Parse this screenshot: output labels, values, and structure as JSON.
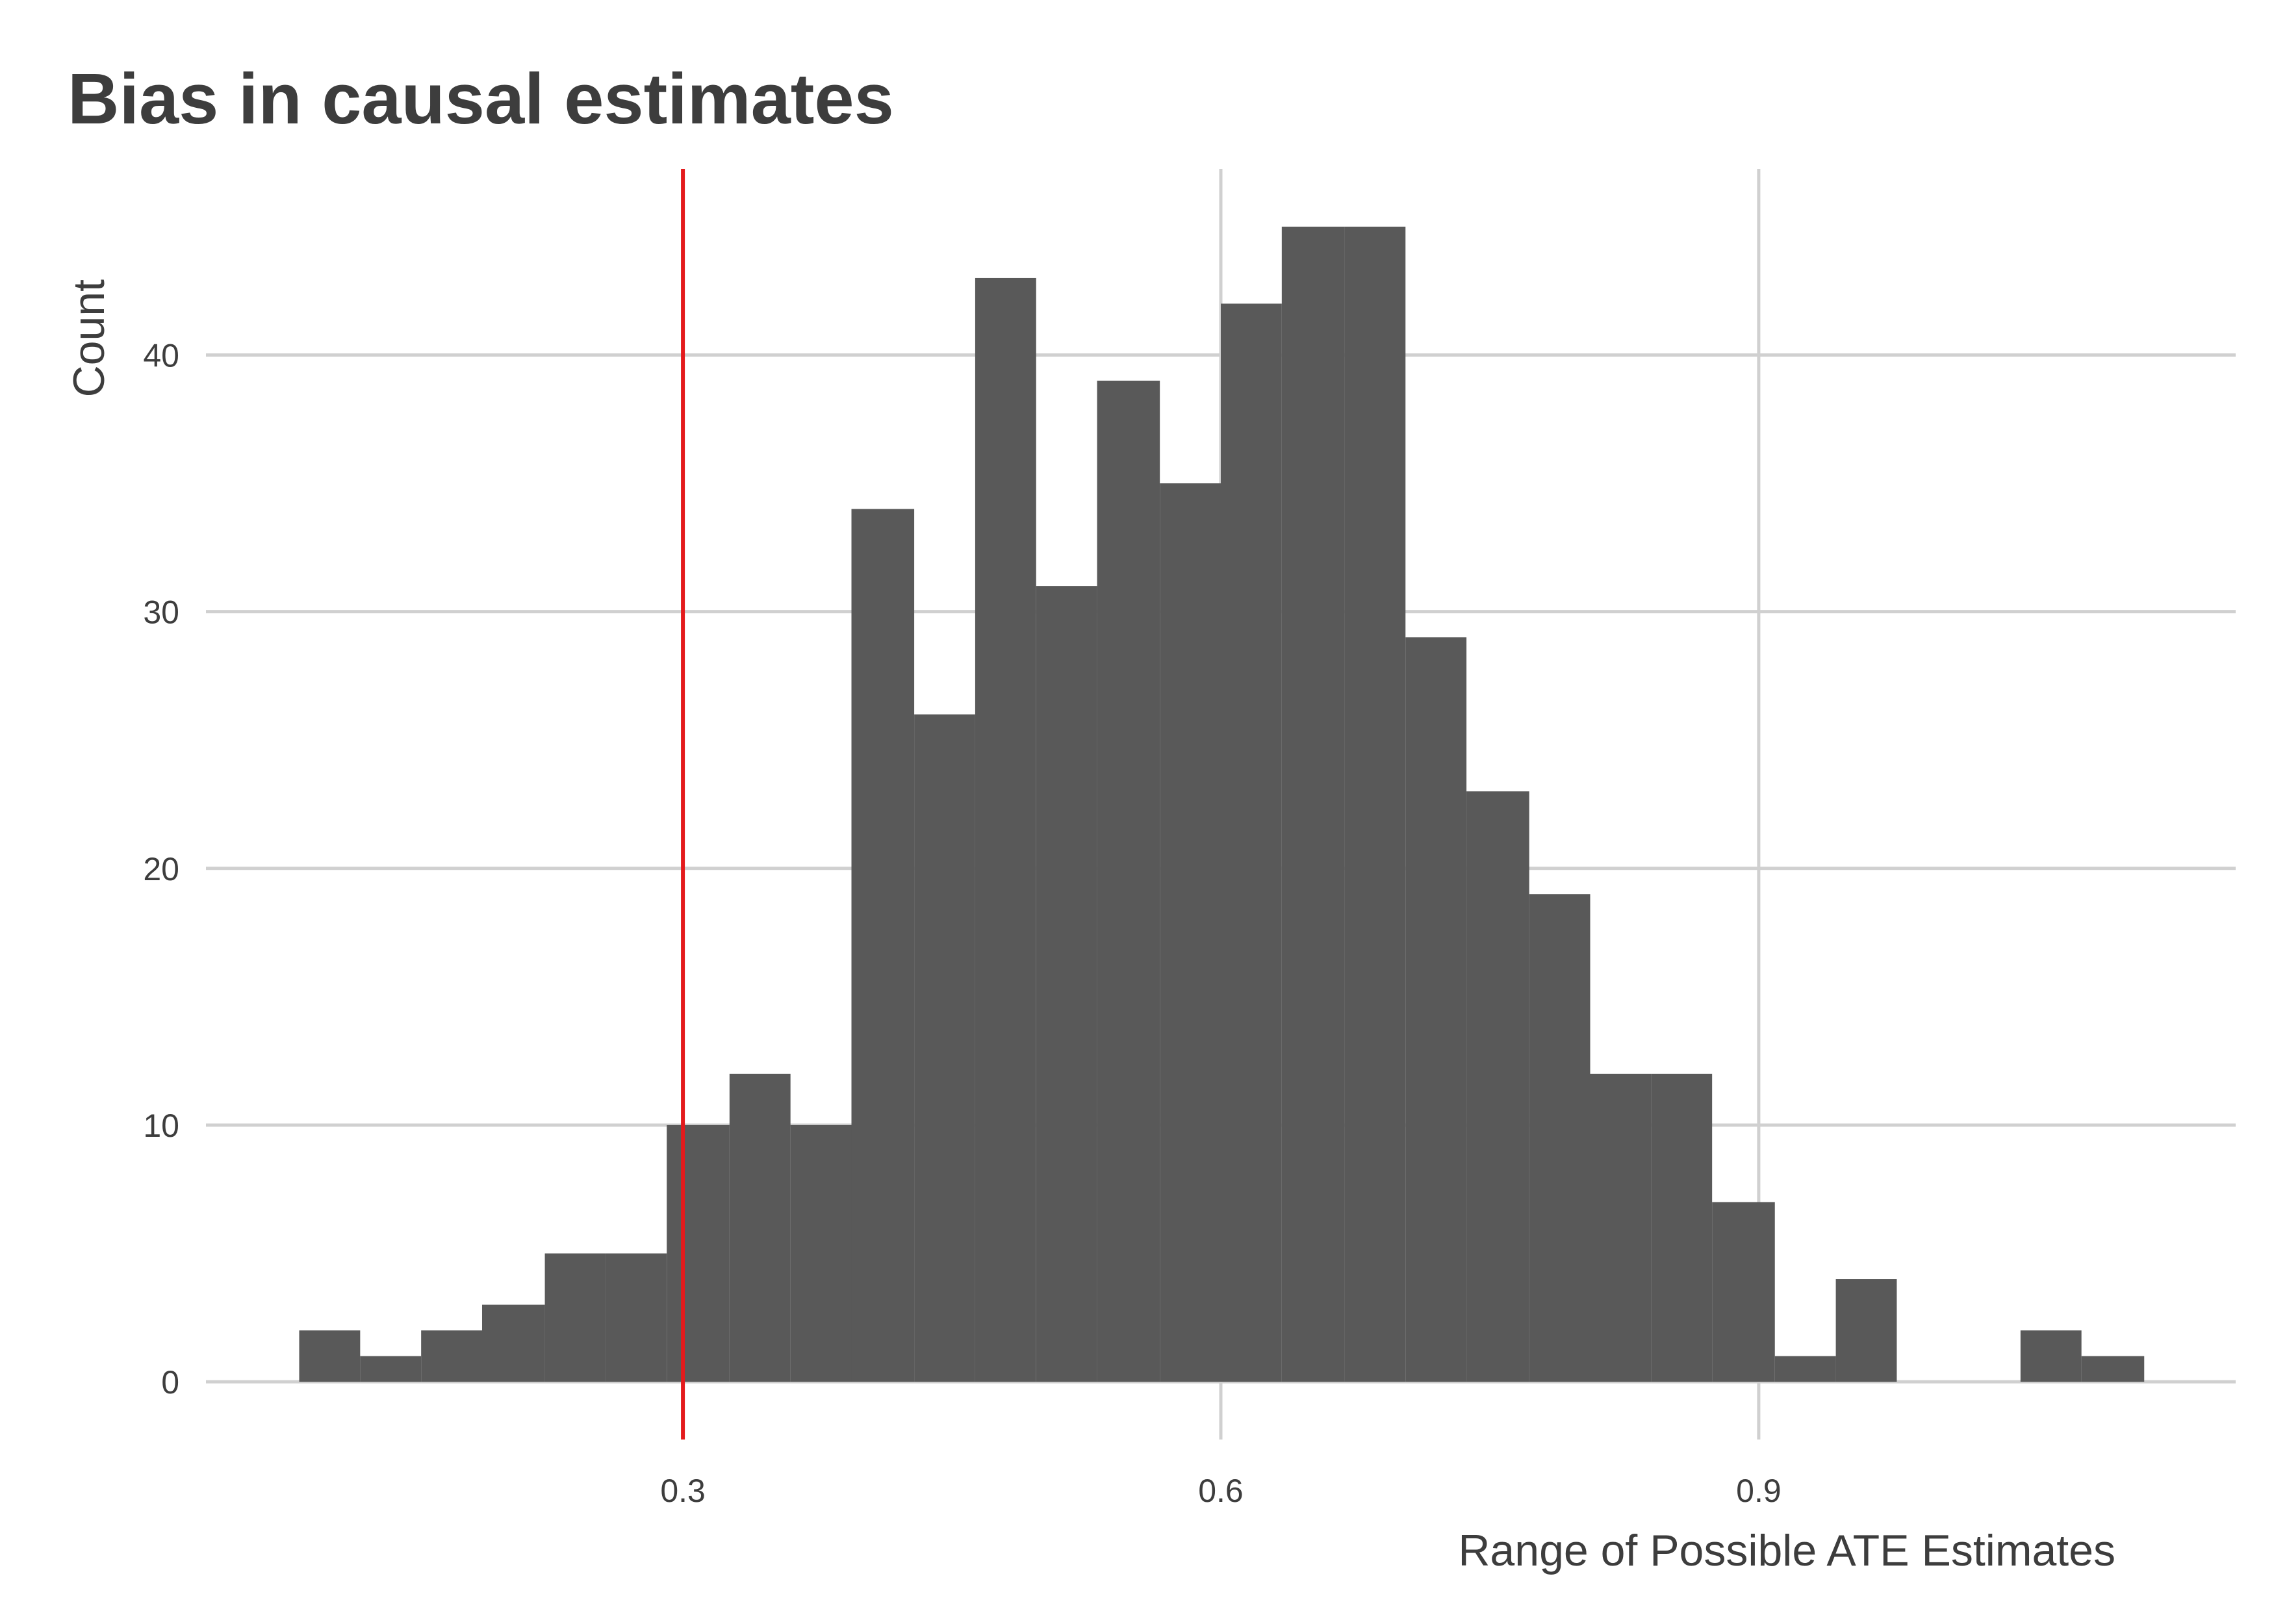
{
  "chart_data": {
    "type": "histogram",
    "title": "Bias in causal estimates",
    "x_label": "Range of Possible ATE Estimates",
    "y_label": "Count",
    "bins": [
      0.086,
      0.12,
      0.154,
      0.188,
      0.223,
      0.257,
      0.291,
      0.326,
      0.36,
      0.394,
      0.429,
      0.463,
      0.497,
      0.531,
      0.566,
      0.6,
      0.634,
      0.669,
      0.703,
      0.737,
      0.772,
      0.806,
      0.84,
      0.874,
      0.909,
      0.943,
      0.977,
      1.012,
      1.046,
      1.08,
      1.115
    ],
    "values": [
      2,
      1,
      2,
      3,
      5,
      5,
      10,
      12,
      10,
      34,
      26,
      43,
      31,
      39,
      35,
      42,
      45,
      45,
      29,
      23,
      19,
      12,
      12,
      7,
      1,
      4,
      0,
      0,
      2,
      1
    ],
    "color": "#595959",
    "vline": 0.3,
    "vline_color": "#e41a1c",
    "xlim": [
      0.034,
      1.166
    ],
    "xticks": [
      0.3,
      0.6,
      0.9
    ],
    "ylim": [
      -2.25,
      47.25
    ],
    "yticks": [
      0,
      10,
      20,
      30,
      40
    ],
    "grid": true
  }
}
